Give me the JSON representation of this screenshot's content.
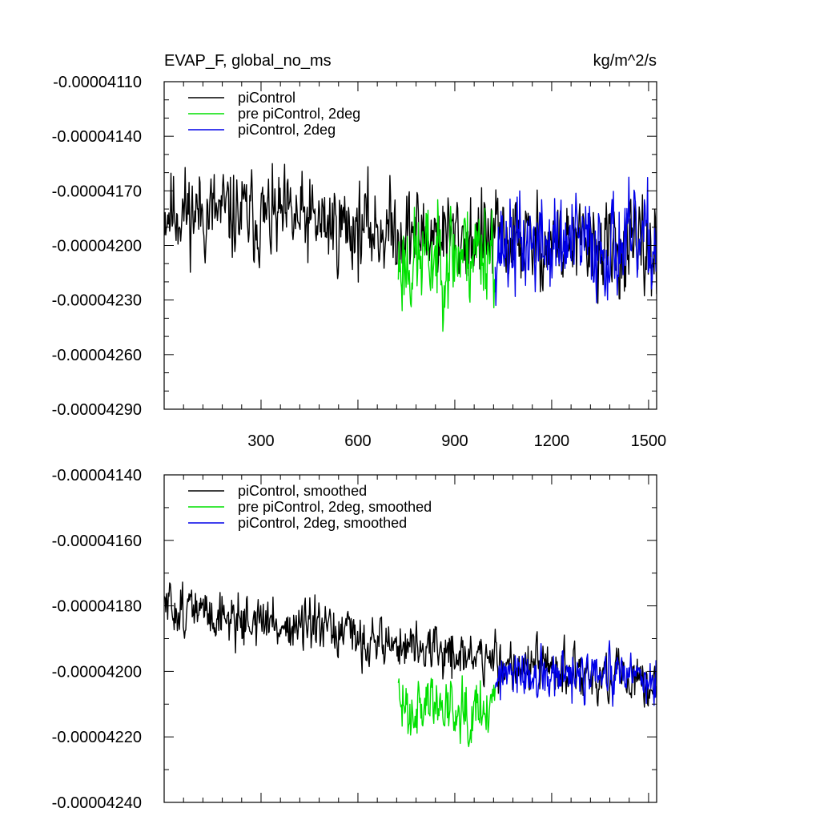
{
  "chart_data": [
    {
      "type": "line",
      "title": "EVAP_F, global_no_ms",
      "units": "kg/m^2/s",
      "xlim": [
        0,
        1525
      ],
      "ylim": [
        -4.29e-05,
        -4.11e-05
      ],
      "xticks": [
        300,
        600,
        900,
        1200,
        1500
      ],
      "xtick_labels": [
        "300",
        "600",
        "900",
        "1200",
        "1500"
      ],
      "yticks": [
        -4.29e-05,
        -4.26e-05,
        -4.23e-05,
        -4.2e-05,
        -4.17e-05,
        -4.14e-05,
        -4.11e-05
      ],
      "ytick_labels": [
        "-0.00004290",
        "-0.00004260",
        "-0.00004230",
        "-0.00004200",
        "-0.00004170",
        "-0.00004140",
        "-0.00004110"
      ],
      "legend_position": "top-left",
      "series": [
        {
          "name": "piControl",
          "color": "#000000",
          "x_range": [
            1,
            1525
          ],
          "mean_start": -4.18e-05,
          "mean_end": -4.205e-05,
          "amplitude": 2.5e-07,
          "seed": 11
        },
        {
          "name": "pre piControl, 2deg",
          "color": "#00e000",
          "x_range": [
            725,
            1025
          ],
          "mean_start": -4.21e-05,
          "mean_end": -4.2e-05,
          "amplitude": 3e-07,
          "seed": 23
        },
        {
          "name": "piControl, 2deg",
          "color": "#0000e8",
          "x_range": [
            1025,
            1525
          ],
          "mean_start": -4.2e-05,
          "mean_end": -4.2e-05,
          "amplitude": 2.8e-07,
          "seed": 37
        }
      ]
    },
    {
      "type": "line",
      "title": "",
      "units": "",
      "xlim": [
        0,
        1525
      ],
      "ylim": [
        -4.24e-05,
        -4.14e-05
      ],
      "xticks": [
        300,
        600,
        900,
        1200,
        1500
      ],
      "xtick_labels": [],
      "yticks": [
        -4.24e-05,
        -4.22e-05,
        -4.2e-05,
        -4.18e-05,
        -4.16e-05,
        -4.14e-05
      ],
      "ytick_labels": [
        "-0.00004240",
        "-0.00004220",
        "-0.00004200",
        "-0.00004180",
        "-0.00004160",
        "-0.00004140"
      ],
      "legend_position": "top-left",
      "series": [
        {
          "name": "piControl, smoothed",
          "color": "#000000",
          "x_range": [
            1,
            1525
          ],
          "mean_start": -4.18e-05,
          "mean_end": -4.205e-05,
          "amplitude": 8e-08,
          "seed": 51
        },
        {
          "name": "pre piControl, 2deg, smoothed",
          "color": "#00e000",
          "x_range": [
            725,
            1025
          ],
          "mean_start": -4.21e-05,
          "mean_end": -4.21e-05,
          "amplitude": 1e-07,
          "seed": 63
        },
        {
          "name": "piControl, 2deg, smoothed",
          "color": "#0000e8",
          "x_range": [
            1025,
            1525
          ],
          "mean_start": -4.202e-05,
          "mean_end": -4.202e-05,
          "amplitude": 8e-08,
          "seed": 77
        }
      ]
    }
  ]
}
